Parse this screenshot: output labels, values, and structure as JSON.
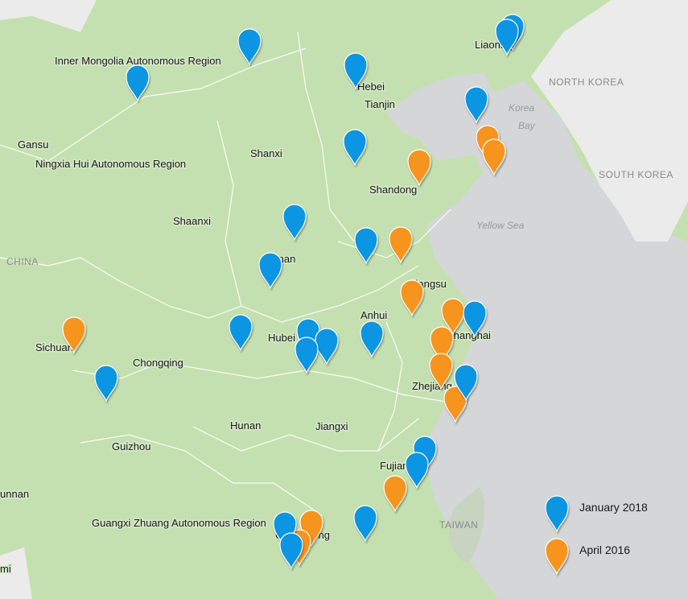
{
  "map": {
    "labels": [
      "Inner Mongolia Autonomous Region",
      "Liaoning",
      "Hebei",
      "Tianjin",
      "Gansu",
      "Ningxia Hui Autonomous Region",
      "Shanxi",
      "Shandong",
      "Shaanxi",
      "Henan",
      "Jiangsu",
      "Anhui",
      "Shanghai",
      "Hubei",
      "Sichuan",
      "Chongqing",
      "Zhejiang",
      "Hunan",
      "Jiangxi",
      "Guizhou",
      "Fujian",
      "Guangxi Zhuang Autonomous Region",
      "Guangdong",
      "unnan",
      "mi"
    ],
    "sea_labels": [
      "NORTH KOREA",
      "SOUTH KOREA",
      "Korea",
      "Bay",
      "Yellow Sea",
      "TAIWAN",
      "CHINA"
    ]
  },
  "legend": [
    {
      "label": "January 2018",
      "color": "#0b95e3"
    },
    {
      "label": "April 2016",
      "color": "#f7941d"
    }
  ]
}
